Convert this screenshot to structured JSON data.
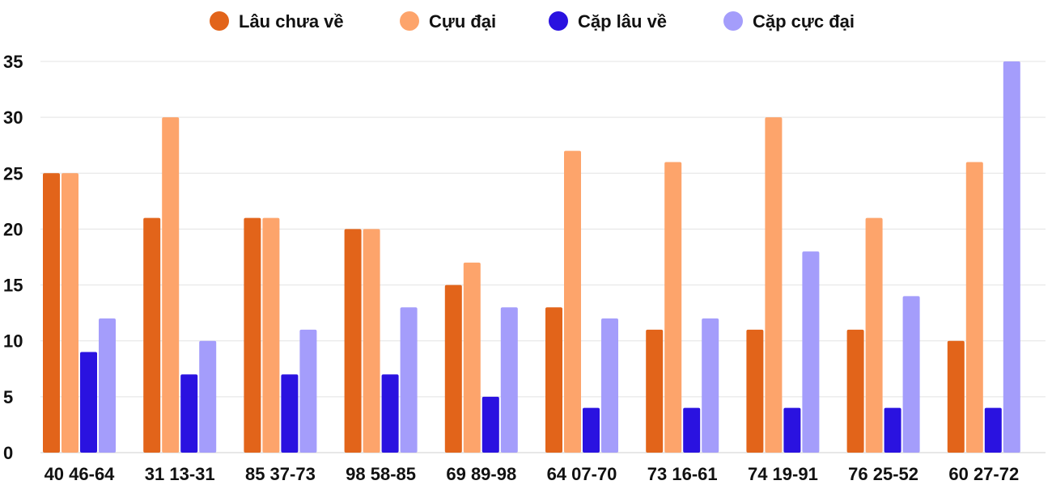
{
  "chart_data": {
    "type": "bar",
    "title": "",
    "xlabel": "",
    "ylabel": "",
    "ylim": [
      0,
      35
    ],
    "yticks": [
      0,
      5,
      10,
      15,
      20,
      25,
      30,
      35
    ],
    "grid": true,
    "legend_position": "top-center",
    "categories": [
      "40 46-64",
      "31 13-31",
      "85 37-73",
      "98 58-85",
      "69 89-98",
      "64 07-70",
      "73 16-61",
      "74 19-91",
      "76 25-52",
      "60 27-72"
    ],
    "series": [
      {
        "name": "Lâu chưa về",
        "color": "#e2641a",
        "values": [
          25,
          21,
          21,
          20,
          15,
          13,
          11,
          11,
          11,
          10
        ]
      },
      {
        "name": "Cựu đại",
        "color": "#fda46b",
        "values": [
          25,
          30,
          21,
          20,
          17,
          27,
          26,
          30,
          21,
          26
        ]
      },
      {
        "name": "Cặp lâu về",
        "color": "#2a12e0",
        "values": [
          9,
          7,
          7,
          7,
          5,
          4,
          4,
          4,
          4,
          4
        ]
      },
      {
        "name": "Cặp cực đại",
        "color": "#a49dfb",
        "values": [
          12,
          10,
          11,
          13,
          13,
          12,
          12,
          18,
          14,
          35
        ]
      }
    ]
  }
}
